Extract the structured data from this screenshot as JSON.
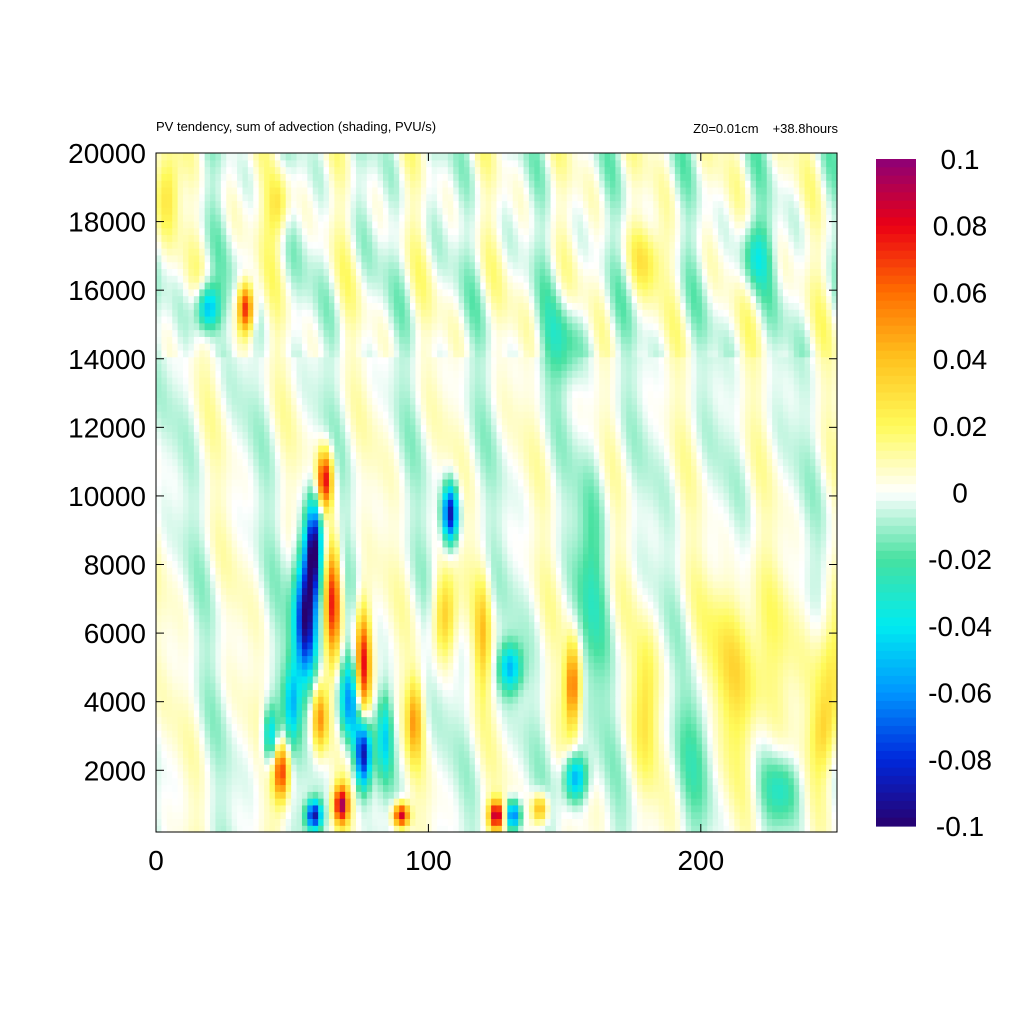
{
  "chart_data": {
    "type": "heatmap",
    "title": "PV tendency, sum of advection (shading, PVU/s)",
    "subtitle_left": "Z0=0.01cm",
    "subtitle_right": "+38.8hours",
    "xlim": [
      0,
      250
    ],
    "ylim": [
      200,
      20000
    ],
    "x_ticks": [
      0,
      100,
      200
    ],
    "y_ticks": [
      2000,
      4000,
      6000,
      8000,
      10000,
      12000,
      14000,
      16000,
      18000,
      20000
    ],
    "colorbar": {
      "range": [
        -0.1,
        0.1
      ],
      "ticks": [
        "0.1",
        "0.08",
        "0.06",
        "0.04",
        "0.02",
        "0",
        "-0.02",
        "-0.04",
        "-0.06",
        "-0.08",
        "-0.1"
      ]
    },
    "grid": false,
    "features": [
      {
        "x": 55,
        "y": 6500,
        "value": -0.1,
        "sx": 3,
        "sy": 1400
      },
      {
        "x": 58,
        "y": 8500,
        "value": -0.09,
        "sx": 2,
        "sy": 1000
      },
      {
        "x": 62,
        "y": 10500,
        "value": 0.08,
        "sx": 2,
        "sy": 600
      },
      {
        "x": 65,
        "y": 7000,
        "value": 0.07,
        "sx": 2,
        "sy": 1200
      },
      {
        "x": 60,
        "y": 3500,
        "value": 0.05,
        "sx": 2,
        "sy": 700
      },
      {
        "x": 76,
        "y": 5000,
        "value": 0.09,
        "sx": 2,
        "sy": 1200
      },
      {
        "x": 76,
        "y": 2500,
        "value": -0.09,
        "sx": 2,
        "sy": 700
      },
      {
        "x": 71,
        "y": 4000,
        "value": -0.06,
        "sx": 3,
        "sy": 900
      },
      {
        "x": 46,
        "y": 2000,
        "value": 0.07,
        "sx": 2,
        "sy": 600
      },
      {
        "x": 42,
        "y": 3000,
        "value": -0.05,
        "sx": 2,
        "sy": 600
      },
      {
        "x": 58,
        "y": 700,
        "value": -0.09,
        "sx": 2,
        "sy": 300
      },
      {
        "x": 68,
        "y": 1000,
        "value": 0.09,
        "sx": 2,
        "sy": 400
      },
      {
        "x": 90,
        "y": 700,
        "value": 0.09,
        "sx": 2,
        "sy": 250
      },
      {
        "x": 108,
        "y": 9500,
        "value": -0.09,
        "sx": 2,
        "sy": 600
      },
      {
        "x": 106,
        "y": 6500,
        "value": 0.04,
        "sx": 3,
        "sy": 900
      },
      {
        "x": 125,
        "y": 700,
        "value": 0.09,
        "sx": 2,
        "sy": 300
      },
      {
        "x": 131,
        "y": 700,
        "value": -0.07,
        "sx": 2,
        "sy": 300
      },
      {
        "x": 141,
        "y": 900,
        "value": 0.05,
        "sx": 2,
        "sy": 300
      },
      {
        "x": 130,
        "y": 5000,
        "value": -0.05,
        "sx": 3,
        "sy": 500
      },
      {
        "x": 153,
        "y": 4500,
        "value": 0.06,
        "sx": 2,
        "sy": 900
      },
      {
        "x": 154,
        "y": 1800,
        "value": -0.06,
        "sx": 3,
        "sy": 500
      },
      {
        "x": 33,
        "y": 15500,
        "value": 0.08,
        "sx": 2,
        "sy": 500
      },
      {
        "x": 19,
        "y": 15500,
        "value": -0.06,
        "sx": 3,
        "sy": 500
      },
      {
        "x": 215,
        "y": 5000,
        "value": 0.03,
        "sx": 10,
        "sy": 1800
      },
      {
        "x": 248,
        "y": 5000,
        "value": 0.035,
        "sx": 4,
        "sy": 1500
      },
      {
        "x": 220,
        "y": 17000,
        "value": -0.03,
        "sx": 4,
        "sy": 700
      },
      {
        "x": 95,
        "y": 3500,
        "value": 0.04,
        "sx": 2,
        "sy": 800
      },
      {
        "x": 84,
        "y": 3000,
        "value": -0.04,
        "sx": 2,
        "sy": 900
      },
      {
        "x": 50,
        "y": 4000,
        "value": -0.04,
        "sx": 2,
        "sy": 800
      },
      {
        "x": 120,
        "y": 6000,
        "value": 0.03,
        "sx": 2,
        "sy": 1200
      },
      {
        "x": 180,
        "y": 4000,
        "value": 0.025,
        "sx": 3,
        "sy": 1500
      },
      {
        "x": 180,
        "y": 17000,
        "value": 0.02,
        "sx": 5,
        "sy": 700
      },
      {
        "x": 45,
        "y": 18500,
        "value": 0.03,
        "sx": 3,
        "sy": 700
      },
      {
        "x": 5,
        "y": 19000,
        "value": 0.025,
        "sx": 3,
        "sy": 900
      },
      {
        "x": 160,
        "y": 7500,
        "value": -0.02,
        "sx": 4,
        "sy": 2500
      },
      {
        "x": 200,
        "y": 3000,
        "value": -0.02,
        "sx": 5,
        "sy": 1500
      },
      {
        "x": 230,
        "y": 1500,
        "value": -0.025,
        "sx": 5,
        "sy": 700
      },
      {
        "x": 150,
        "y": 14500,
        "value": -0.02,
        "sx": 6,
        "sy": 800
      },
      {
        "x": 245,
        "y": 3000,
        "value": 0.025,
        "sx": 3,
        "sy": 800
      }
    ]
  }
}
